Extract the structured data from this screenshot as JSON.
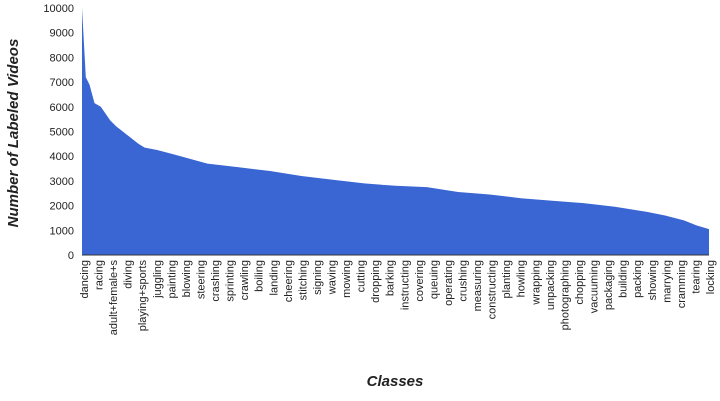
{
  "chart_data": {
    "type": "area",
    "xlabel": "Classes",
    "ylabel": "Number of Labeled Videos",
    "ylim": [
      0,
      10000
    ],
    "yticks": [
      0,
      1000,
      2000,
      3000,
      4000,
      5000,
      6000,
      7000,
      8000,
      9000,
      10000
    ],
    "ytick_labels": [
      "0",
      "1000",
      "2000",
      "3000",
      "4000",
      "5000",
      "6000",
      "7000",
      "8000",
      "9000",
      "10000"
    ],
    "categories": [
      "dancing",
      "racing",
      "adult+female+s",
      "diving",
      "playing+sports",
      "juggling",
      "painting",
      "blowing",
      "steering",
      "crashing",
      "sprinting",
      "crawling",
      "boiling",
      "landing",
      "cheering",
      "stitching",
      "signing",
      "waving",
      "mowing",
      "cutting",
      "dropping",
      "barking",
      "instructing",
      "covering",
      "queuing",
      "operating",
      "crushing",
      "measuring",
      "constructing",
      "planting",
      "howling",
      "wrapping",
      "unpacking",
      "photographing",
      "chopping",
      "vacuuming",
      "packaging",
      "building",
      "packing",
      "showing",
      "marrying",
      "cramming",
      "tearing",
      "locking"
    ],
    "curve": {
      "x": [
        0,
        0.006,
        0.012,
        0.02,
        0.03,
        0.045,
        0.055,
        0.065,
        0.075,
        0.09,
        0.1,
        0.12,
        0.15,
        0.2,
        0.25,
        0.3,
        0.35,
        0.4,
        0.45,
        0.5,
        0.55,
        0.6,
        0.65,
        0.7,
        0.75,
        0.8,
        0.85,
        0.9,
        0.93,
        0.96,
        0.98,
        1
      ],
      "y": [
        10000,
        7200,
        6900,
        6150,
        6000,
        5450,
        5200,
        5000,
        4800,
        4500,
        4350,
        4250,
        4050,
        3700,
        3550,
        3400,
        3200,
        3050,
        2900,
        2800,
        2750,
        2550,
        2450,
        2300,
        2200,
        2100,
        1950,
        1750,
        1600,
        1400,
        1200,
        1050
      ]
    },
    "fill_color": "#3a66d4",
    "grid": false,
    "legend": "none"
  }
}
